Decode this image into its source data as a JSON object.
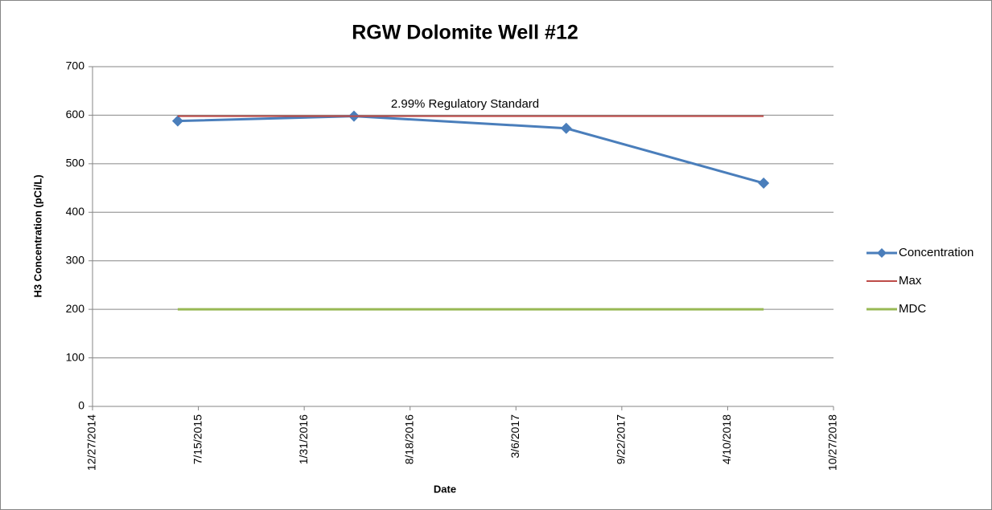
{
  "chart_data": {
    "type": "line",
    "title": "RGW Dolomite Well #12",
    "x_label": "Date",
    "y_label": "H3 Concentration (pCi/L)",
    "annotation": "2.99% Regulatory Standard",
    "x": [
      "6/6/2015",
      "5/4/2016",
      "6/9/2017",
      "6/17/2018"
    ],
    "series": [
      {
        "name": "Concentration",
        "color": "#4a7ebb",
        "values": [
          588,
          598,
          573,
          460
        ],
        "marker": "diamond"
      },
      {
        "name": "Max",
        "color": "#be4b48",
        "values": [
          598,
          598,
          598,
          598
        ]
      },
      {
        "name": "MDC",
        "color": "#98b954",
        "values": [
          200,
          200,
          200,
          200
        ]
      }
    ],
    "xlim": [
      "12/27/2014",
      "10/27/2018"
    ],
    "xticks": [
      "12/27/2014",
      "7/15/2015",
      "1/31/2016",
      "8/18/2016",
      "3/6/2017",
      "9/22/2017",
      "4/10/2018",
      "10/27/2018"
    ],
    "ylim": [
      0,
      700
    ],
    "yticks": [
      0,
      100,
      200,
      300,
      400,
      500,
      600,
      700
    ],
    "grid": true,
    "legend": "right"
  }
}
